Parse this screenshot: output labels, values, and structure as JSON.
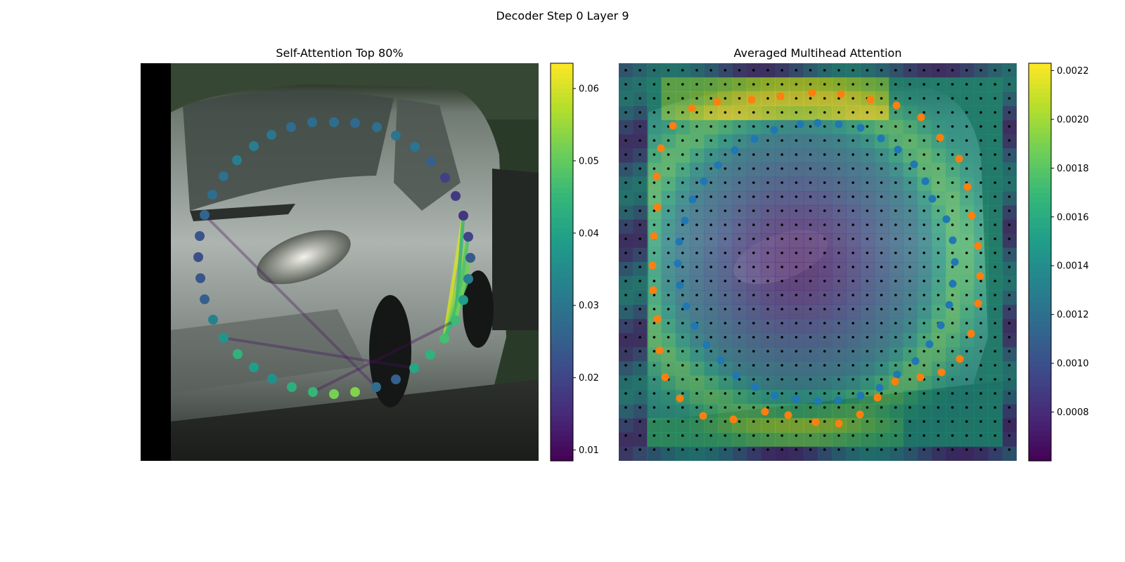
{
  "title": "Decoder Step 0 Layer 9",
  "chart_data": [
    {
      "type": "scatter",
      "title": "Self-Attention Top 80%",
      "background": "photo-van-street",
      "colormap": "viridis",
      "colorbar": {
        "ylim": [
          0.0085,
          0.0635
        ],
        "ticks": [
          "0.01",
          "0.02",
          "0.03",
          "0.04",
          "0.05",
          "0.06"
        ],
        "tick_values": [
          0.01,
          0.02,
          0.03,
          0.04,
          0.05,
          0.06
        ]
      },
      "points": [
        {
          "x": 475,
          "y": 174,
          "v": 0.028
        },
        {
          "x": 505,
          "y": 175,
          "v": 0.027
        },
        {
          "x": 536,
          "y": 181,
          "v": 0.029
        },
        {
          "x": 563,
          "y": 193,
          "v": 0.03
        },
        {
          "x": 590,
          "y": 209,
          "v": 0.03
        },
        {
          "x": 613,
          "y": 230,
          "v": 0.025
        },
        {
          "x": 633,
          "y": 253,
          "v": 0.019
        },
        {
          "x": 648,
          "y": 279,
          "v": 0.018
        },
        {
          "x": 659,
          "y": 307,
          "v": 0.017
        },
        {
          "x": 666,
          "y": 337,
          "v": 0.02
        },
        {
          "x": 669,
          "y": 367,
          "v": 0.024
        },
        {
          "x": 666,
          "y": 397,
          "v": 0.032
        },
        {
          "x": 659,
          "y": 427,
          "v": 0.039
        },
        {
          "x": 648,
          "y": 456,
          "v": 0.046
        },
        {
          "x": 632,
          "y": 482,
          "v": 0.047
        },
        {
          "x": 612,
          "y": 505,
          "v": 0.044
        },
        {
          "x": 589,
          "y": 524,
          "v": 0.041
        },
        {
          "x": 563,
          "y": 540,
          "v": 0.025
        },
        {
          "x": 535,
          "y": 551,
          "v": 0.028
        },
        {
          "x": 505,
          "y": 558,
          "v": 0.053
        },
        {
          "x": 475,
          "y": 561,
          "v": 0.052
        },
        {
          "x": 445,
          "y": 558,
          "v": 0.045
        },
        {
          "x": 415,
          "y": 551,
          "v": 0.043
        },
        {
          "x": 387,
          "y": 539,
          "v": 0.036
        },
        {
          "x": 361,
          "y": 523,
          "v": 0.039
        },
        {
          "x": 338,
          "y": 504,
          "v": 0.044
        },
        {
          "x": 318,
          "y": 481,
          "v": 0.037
        },
        {
          "x": 303,
          "y": 455,
          "v": 0.033
        },
        {
          "x": 291,
          "y": 426,
          "v": 0.025
        },
        {
          "x": 285,
          "y": 396,
          "v": 0.023
        },
        {
          "x": 282,
          "y": 366,
          "v": 0.022
        },
        {
          "x": 284,
          "y": 336,
          "v": 0.023
        },
        {
          "x": 291,
          "y": 306,
          "v": 0.026
        },
        {
          "x": 302,
          "y": 277,
          "v": 0.028
        },
        {
          "x": 318,
          "y": 251,
          "v": 0.029
        },
        {
          "x": 337,
          "y": 228,
          "v": 0.032
        },
        {
          "x": 361,
          "y": 208,
          "v": 0.032
        },
        {
          "x": 386,
          "y": 192,
          "v": 0.03
        },
        {
          "x": 414,
          "y": 181,
          "v": 0.028
        },
        {
          "x": 444,
          "y": 174,
          "v": 0.028
        }
      ],
      "links": [
        {
          "from": 8,
          "to": 14,
          "v": 0.06
        },
        {
          "from": 9,
          "to": 14,
          "v": 0.055
        },
        {
          "from": 10,
          "to": 14,
          "v": 0.05
        },
        {
          "from": 11,
          "to": 14,
          "v": 0.047
        },
        {
          "from": 8,
          "to": 13,
          "v": 0.045
        },
        {
          "from": 12,
          "to": 14,
          "v": 0.045
        },
        {
          "from": 9,
          "to": 13,
          "v": 0.048
        },
        {
          "from": 10,
          "to": 13,
          "v": 0.052
        },
        {
          "from": 32,
          "to": 18,
          "v": 0.012
        },
        {
          "from": 26,
          "to": 16,
          "v": 0.011
        },
        {
          "from": 21,
          "to": 13,
          "v": 0.01
        }
      ]
    },
    {
      "type": "heatmap",
      "title": "Averaged Multihead Attention",
      "background": "photo-van-street",
      "colormap": "viridis",
      "colorbar": {
        "ylim": [
          0.0006,
          0.00223
        ],
        "ticks": [
          "0.0008",
          "0.0010",
          "0.0012",
          "0.0014",
          "0.0016",
          "0.0018",
          "0.0020",
          "0.0022"
        ],
        "tick_values": [
          0.0008,
          0.001,
          0.0012,
          0.0014,
          0.0016,
          0.0018,
          0.002,
          0.0022
        ]
      },
      "grid_size": [
        28,
        28
      ],
      "inner_points_color": "#1f77b4",
      "outer_points_color": "#ff7f0e",
      "inner_points": [
        {
          "x": 1138,
          "y": 177
        },
        {
          "x": 1163,
          "y": 175
        },
        {
          "x": 1193,
          "y": 177
        },
        {
          "x": 1224,
          "y": 182
        },
        {
          "x": 1253,
          "y": 197
        },
        {
          "x": 1277,
          "y": 213
        },
        {
          "x": 1300,
          "y": 234
        },
        {
          "x": 1316,
          "y": 258
        },
        {
          "x": 1326,
          "y": 283
        },
        {
          "x": 1346,
          "y": 312
        },
        {
          "x": 1355,
          "y": 342
        },
        {
          "x": 1358,
          "y": 373
        },
        {
          "x": 1355,
          "y": 404
        },
        {
          "x": 1350,
          "y": 434
        },
        {
          "x": 1338,
          "y": 463
        },
        {
          "x": 1322,
          "y": 490
        },
        {
          "x": 1302,
          "y": 514
        },
        {
          "x": 1276,
          "y": 533
        },
        {
          "x": 1251,
          "y": 552
        },
        {
          "x": 1224,
          "y": 563
        },
        {
          "x": 1192,
          "y": 570
        },
        {
          "x": 1163,
          "y": 571
        },
        {
          "x": 1132,
          "y": 568
        },
        {
          "x": 1102,
          "y": 563
        },
        {
          "x": 1074,
          "y": 551
        },
        {
          "x": 1047,
          "y": 535
        },
        {
          "x": 1025,
          "y": 513
        },
        {
          "x": 1005,
          "y": 491
        },
        {
          "x": 988,
          "y": 464
        },
        {
          "x": 976,
          "y": 436
        },
        {
          "x": 967,
          "y": 406
        },
        {
          "x": 964,
          "y": 375
        },
        {
          "x": 966,
          "y": 344
        },
        {
          "x": 974,
          "y": 314
        },
        {
          "x": 985,
          "y": 284
        },
        {
          "x": 1001,
          "y": 258
        },
        {
          "x": 1021,
          "y": 235
        },
        {
          "x": 1045,
          "y": 214
        },
        {
          "x": 1073,
          "y": 198
        },
        {
          "x": 1101,
          "y": 185
        }
      ],
      "outer_points": [
        {
          "x": 1155,
          "y": 132
        },
        {
          "x": 1196,
          "y": 134
        },
        {
          "x": 1238,
          "y": 142
        },
        {
          "x": 1275,
          "y": 150
        },
        {
          "x": 1310,
          "y": 167
        },
        {
          "x": 1337,
          "y": 196
        },
        {
          "x": 1364,
          "y": 226
        },
        {
          "x": 1376,
          "y": 266
        },
        {
          "x": 1382,
          "y": 307
        },
        {
          "x": 1391,
          "y": 350
        },
        {
          "x": 1394,
          "y": 393
        },
        {
          "x": 1391,
          "y": 432
        },
        {
          "x": 1381,
          "y": 475
        },
        {
          "x": 1365,
          "y": 511
        },
        {
          "x": 1339,
          "y": 530
        },
        {
          "x": 1309,
          "y": 537
        },
        {
          "x": 1273,
          "y": 543
        },
        {
          "x": 1248,
          "y": 566
        },
        {
          "x": 1223,
          "y": 590
        },
        {
          "x": 1193,
          "y": 603
        },
        {
          "x": 1160,
          "y": 601
        },
        {
          "x": 1121,
          "y": 591
        },
        {
          "x": 1088,
          "y": 586
        },
        {
          "x": 1043,
          "y": 597
        },
        {
          "x": 1000,
          "y": 592
        },
        {
          "x": 967,
          "y": 567
        },
        {
          "x": 946,
          "y": 537
        },
        {
          "x": 938,
          "y": 499
        },
        {
          "x": 935,
          "y": 454
        },
        {
          "x": 929,
          "y": 413
        },
        {
          "x": 928,
          "y": 378
        },
        {
          "x": 930,
          "y": 336
        },
        {
          "x": 935,
          "y": 295
        },
        {
          "x": 934,
          "y": 251
        },
        {
          "x": 940,
          "y": 211
        },
        {
          "x": 957,
          "y": 179
        },
        {
          "x": 984,
          "y": 154
        },
        {
          "x": 1020,
          "y": 145
        },
        {
          "x": 1069,
          "y": 142
        },
        {
          "x": 1110,
          "y": 137
        }
      ]
    }
  ]
}
